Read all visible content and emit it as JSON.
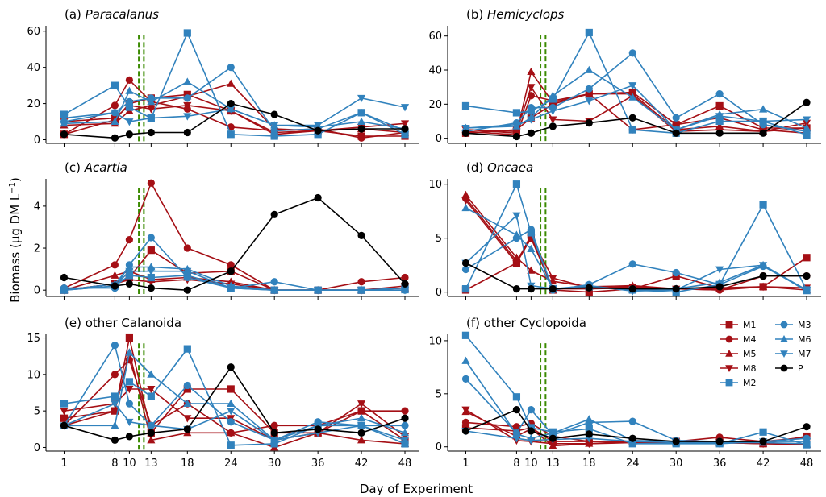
{
  "figure": {
    "ylabel": "Biomass (μg DM L",
    "ylabel_sup": "−1",
    "ylabel_close": ")",
    "xlabel": "Day of Experiment"
  },
  "colors": {
    "red": "#a50f15",
    "blue": "#3182bd",
    "black": "#000000",
    "vline": "#3a8a00"
  },
  "legend": [
    {
      "name": "M1",
      "color": "red",
      "marker": "square"
    },
    {
      "name": "M3",
      "color": "blue",
      "marker": "circle"
    },
    {
      "name": "M4",
      "color": "red",
      "marker": "circle"
    },
    {
      "name": "M6",
      "color": "blue",
      "marker": "triangle-up"
    },
    {
      "name": "M5",
      "color": "red",
      "marker": "triangle-up"
    },
    {
      "name": "M7",
      "color": "blue",
      "marker": "triangle-down"
    },
    {
      "name": "M8",
      "color": "red",
      "marker": "triangle-down"
    },
    {
      "name": "P",
      "color": "black",
      "marker": "circle"
    },
    {
      "name": "M2",
      "color": "blue",
      "marker": "square"
    }
  ],
  "chart_data": [
    {
      "type": "line",
      "panel": "(a)",
      "title_prefix": "(a) ",
      "title_taxon": "Paracalanus",
      "x": [
        1,
        8,
        10,
        13,
        18,
        24,
        30,
        36,
        42,
        48
      ],
      "xticks": [
        "1",
        "8",
        "10",
        "13",
        "18",
        "24",
        "30",
        "36",
        "42",
        "48"
      ],
      "ylim": [
        -2,
        63
      ],
      "yticks": [
        0,
        20,
        40,
        60
      ],
      "vlines": [
        11.3,
        12
      ],
      "series": [
        {
          "name": "M1",
          "values": [
            3,
            11,
            20,
            23,
            25,
            16,
            3,
            5,
            2,
            2
          ]
        },
        {
          "name": "M4",
          "values": [
            3,
            19,
            33,
            21,
            17,
            7,
            5,
            6,
            1,
            4
          ]
        },
        {
          "name": "M5",
          "values": [
            8,
            9,
            16,
            19,
            24,
            31,
            6,
            5,
            6,
            4
          ]
        },
        {
          "name": "M8",
          "values": [
            10,
            12,
            19,
            17,
            19,
            16,
            4,
            5,
            7,
            9
          ]
        },
        {
          "name": "M2",
          "values": [
            14,
            30,
            18,
            12,
            59,
            3,
            2,
            3,
            15,
            3
          ]
        },
        {
          "name": "M3",
          "values": [
            10,
            15,
            21,
            23,
            23,
            40,
            5,
            6,
            15,
            5
          ]
        },
        {
          "name": "M6",
          "values": [
            9,
            10,
            27,
            21,
            32,
            17,
            8,
            7,
            10,
            6
          ]
        },
        {
          "name": "M7",
          "values": [
            12,
            15,
            10,
            12,
            13,
            17,
            8,
            8,
            23,
            18
          ]
        },
        {
          "name": "P",
          "values": [
            3,
            1,
            3,
            4,
            4,
            20,
            14,
            5,
            6,
            6
          ]
        }
      ]
    },
    {
      "type": "line",
      "panel": "(b)",
      "title_prefix": "(b) ",
      "title_taxon": "Hemicyclops",
      "x": [
        1,
        8,
        10,
        13,
        18,
        24,
        30,
        36,
        42,
        48
      ],
      "xticks": [
        "1",
        "8",
        "10",
        "13",
        "18",
        "24",
        "30",
        "36",
        "42",
        "48"
      ],
      "ylim": [
        -3,
        66
      ],
      "yticks": [
        0,
        20,
        40,
        60
      ],
      "vlines": [
        11.3,
        12
      ],
      "series": [
        {
          "name": "M1",
          "values": [
            3,
            5,
            12,
            20,
            26,
            27,
            8,
            19,
            6,
            6
          ]
        },
        {
          "name": "M4",
          "values": [
            4,
            2,
            25,
            22,
            26,
            5,
            8,
            12,
            5,
            3
          ]
        },
        {
          "name": "M5",
          "values": [
            5,
            3,
            39,
            21,
            26,
            26,
            5,
            7,
            4,
            6
          ]
        },
        {
          "name": "M8",
          "values": [
            5,
            4,
            30,
            11,
            10,
            25,
            4,
            5,
            4,
            9
          ]
        },
        {
          "name": "M2",
          "values": [
            19,
            15,
            16,
            23,
            62,
            5,
            3,
            10,
            10,
            2
          ]
        },
        {
          "name": "M3",
          "values": [
            4,
            9,
            18,
            18,
            29,
            50,
            12,
            26,
            8,
            4
          ]
        },
        {
          "name": "M6",
          "values": [
            6,
            7,
            12,
            25,
            40,
            24,
            5,
            14,
            17,
            6
          ]
        },
        {
          "name": "M7",
          "values": [
            6,
            8,
            11,
            16,
            22,
            31,
            5,
            13,
            10,
            11
          ]
        },
        {
          "name": "P",
          "values": [
            3,
            1,
            3,
            7,
            9,
            12,
            3,
            3,
            3,
            21
          ]
        }
      ]
    },
    {
      "type": "line",
      "panel": "(c)",
      "title_prefix": "(c) ",
      "title_taxon": "Acartia",
      "x": [
        1,
        8,
        10,
        13,
        18,
        24,
        30,
        36,
        42,
        48
      ],
      "xticks": [
        "1",
        "8",
        "10",
        "13",
        "18",
        "24",
        "30",
        "36",
        "42",
        "48"
      ],
      "ylim": [
        -0.3,
        5.3
      ],
      "yticks": [
        0,
        2,
        4
      ],
      "vlines": [
        11.3,
        12
      ],
      "series": [
        {
          "name": "M1",
          "values": [
            0,
            0.3,
            0.6,
            1.9,
            0.8,
            0.9,
            0,
            0,
            0,
            0.1
          ]
        },
        {
          "name": "M4",
          "values": [
            0.1,
            1.2,
            2.4,
            5.1,
            2.0,
            1.2,
            0,
            0,
            0.4,
            0.6
          ]
        },
        {
          "name": "M5",
          "values": [
            0,
            0.7,
            0.9,
            0.5,
            0.6,
            0.4,
            0,
            0,
            0,
            0.1
          ]
        },
        {
          "name": "M8",
          "values": [
            0,
            0.3,
            0.5,
            0.4,
            0.5,
            0.3,
            0,
            0,
            0,
            0.2
          ]
        },
        {
          "name": "M2",
          "values": [
            0,
            0.2,
            0.7,
            0.6,
            0.7,
            0.1,
            0,
            0,
            0,
            0.1
          ]
        },
        {
          "name": "M3",
          "values": [
            0.1,
            0.1,
            1.2,
            2.5,
            0.6,
            0.1,
            0.4,
            0,
            0,
            0
          ]
        },
        {
          "name": "M6",
          "values": [
            0,
            0.3,
            1.1,
            1.1,
            1.0,
            0.2,
            0,
            0,
            0,
            0
          ]
        },
        {
          "name": "M7",
          "values": [
            0,
            0.2,
            0.9,
            0.9,
            0.9,
            0.1,
            0,
            0,
            0,
            0
          ]
        },
        {
          "name": "P",
          "values": [
            0.6,
            0.2,
            0.3,
            0.1,
            0,
            0.9,
            3.6,
            4.4,
            2.6,
            0.3
          ]
        }
      ]
    },
    {
      "type": "line",
      "panel": "(d)",
      "title_prefix": "(d) ",
      "title_taxon": "Oncaea",
      "x": [
        1,
        8,
        10,
        13,
        18,
        24,
        30,
        36,
        42,
        48
      ],
      "xticks": [
        "1",
        "8",
        "10",
        "13",
        "18",
        "24",
        "30",
        "36",
        "42",
        "48"
      ],
      "ylim": [
        -0.4,
        10.5
      ],
      "yticks": [
        0,
        5,
        10
      ],
      "vlines": [
        11.3,
        12
      ],
      "series": [
        {
          "name": "M1",
          "values": [
            0.2,
            2.7,
            5.3,
            0.2,
            0,
            0.3,
            1.5,
            0.4,
            0.5,
            3.2
          ]
        },
        {
          "name": "M4",
          "values": [
            8.7,
            2.9,
            5.0,
            0.3,
            0.3,
            0.4,
            0.3,
            0.2,
            1.5,
            1.5
          ]
        },
        {
          "name": "M5",
          "values": [
            9.0,
            3.2,
            2.0,
            1.0,
            0.5,
            0.6,
            0.3,
            0.3,
            0.5,
            0.2
          ]
        },
        {
          "name": "M8",
          "values": [
            8.5,
            2.7,
            5.0,
            1.3,
            0.4,
            0.5,
            0.3,
            0.2,
            0.5,
            0.4
          ]
        },
        {
          "name": "M2",
          "values": [
            0.3,
            10,
            5.5,
            0.3,
            0.5,
            0.2,
            0,
            0.7,
            8.1,
            0.2
          ]
        },
        {
          "name": "M3",
          "values": [
            2.1,
            5.0,
            5.8,
            0.2,
            0.7,
            2.6,
            1.8,
            0.7,
            2.4,
            0.2
          ]
        },
        {
          "name": "M6",
          "values": [
            7.8,
            5.3,
            4.0,
            0.3,
            0.5,
            0.2,
            0.3,
            0.9,
            2.5,
            0.1
          ]
        },
        {
          "name": "M7",
          "values": [
            2.7,
            7.1,
            0.6,
            0.3,
            0.6,
            0.1,
            0.2,
            2.1,
            2.5,
            0.2
          ]
        },
        {
          "name": "P",
          "values": [
            2.7,
            0.3,
            0.3,
            0.3,
            0.4,
            0.3,
            0.3,
            0.5,
            1.5,
            1.5
          ]
        }
      ]
    },
    {
      "type": "line",
      "panel": "(e)",
      "title_prefix": "(e) other Calanoida",
      "title_taxon": "",
      "x": [
        1,
        8,
        10,
        13,
        18,
        24,
        30,
        36,
        42,
        48
      ],
      "xticks": [
        "1",
        "8",
        "10",
        "13",
        "18",
        "24",
        "30",
        "36",
        "42",
        "48"
      ],
      "ylim": [
        -0.5,
        15.5
      ],
      "yticks": [
        0,
        5,
        10,
        15
      ],
      "vlines": [
        11.3,
        12
      ],
      "series": [
        {
          "name": "M1",
          "values": [
            4,
            5,
            15,
            2,
            8,
            8,
            2,
            2,
            5,
            1
          ]
        },
        {
          "name": "M4",
          "values": [
            3,
            10,
            12,
            3,
            6,
            2,
            3,
            3,
            5,
            5
          ]
        },
        {
          "name": "M5",
          "values": [
            3,
            5,
            13,
            1,
            2,
            2,
            0,
            2,
            1,
            0.5
          ]
        },
        {
          "name": "M8",
          "values": [
            5,
            6,
            8,
            8,
            4,
            4,
            1,
            2,
            6,
            1.5
          ]
        },
        {
          "name": "M2",
          "values": [
            6,
            7,
            9,
            7,
            13.5,
            0.3,
            0.5,
            3,
            3,
            0.5
          ]
        },
        {
          "name": "M3",
          "values": [
            3,
            14,
            6,
            3,
            8.5,
            3.5,
            1,
            3.5,
            3,
            3
          ]
        },
        {
          "name": "M6",
          "values": [
            3,
            3,
            13,
            10,
            6,
            6,
            1,
            3,
            4,
            2
          ]
        },
        {
          "name": "M7",
          "values": [
            3,
            6,
            3.5,
            3,
            2.5,
            5,
            1,
            2,
            3,
            1
          ]
        },
        {
          "name": "P",
          "values": [
            3,
            1,
            1.5,
            2,
            2.5,
            11,
            2,
            2.5,
            2,
            4
          ]
        }
      ]
    },
    {
      "type": "line",
      "panel": "(f)",
      "title_prefix": "(f) other Cyclopoida",
      "title_taxon": "",
      "x": [
        1,
        8,
        10,
        13,
        18,
        24,
        30,
        36,
        42,
        48
      ],
      "xticks": [
        "1",
        "8",
        "10",
        "13",
        "18",
        "24",
        "30",
        "36",
        "42",
        "48"
      ],
      "ylim": [
        -0.4,
        10.6
      ],
      "yticks": [
        0,
        5,
        10
      ],
      "vlines": [
        11.3,
        12
      ],
      "series": [
        {
          "name": "M1",
          "values": [
            1.8,
            1.5,
            1.8,
            0.5,
            0.5,
            0.5,
            0.5,
            0.5,
            0.3,
            1.0
          ]
        },
        {
          "name": "M4",
          "values": [
            2.3,
            1.9,
            2.2,
            1.0,
            0.5,
            0.5,
            0.5,
            0.9,
            0.5,
            0.9
          ]
        },
        {
          "name": "M5",
          "values": [
            3.3,
            1.0,
            1.7,
            0.1,
            0.3,
            0.5,
            0.4,
            0.4,
            0.3,
            0.2
          ]
        },
        {
          "name": "M8",
          "values": [
            3.5,
            0.6,
            0.5,
            0.3,
            0.3,
            0.4,
            0.4,
            0.4,
            0.3,
            0.3
          ]
        },
        {
          "name": "M2",
          "values": [
            10.5,
            4.7,
            1.8,
            1.4,
            1.7,
            0.3,
            0.3,
            0.3,
            1.4,
            0.2
          ]
        },
        {
          "name": "M3",
          "values": [
            6.4,
            1.3,
            3.5,
            1.1,
            2.3,
            2.4,
            0.6,
            0.5,
            0.5,
            0.8
          ]
        },
        {
          "name": "M6",
          "values": [
            8.1,
            1.2,
            0.8,
            1.3,
            2.6,
            0.6,
            0.5,
            0.4,
            0.4,
            0.3
          ]
        },
        {
          "name": "M7",
          "values": [
            1.5,
            0.8,
            0.6,
            0.7,
            0.8,
            0.5,
            0.4,
            0.3,
            0.5,
            0.5
          ]
        },
        {
          "name": "P",
          "values": [
            1.5,
            3.5,
            1.5,
            0.8,
            1.2,
            0.8,
            0.5,
            0.5,
            0.5,
            1.9
          ]
        }
      ]
    }
  ]
}
